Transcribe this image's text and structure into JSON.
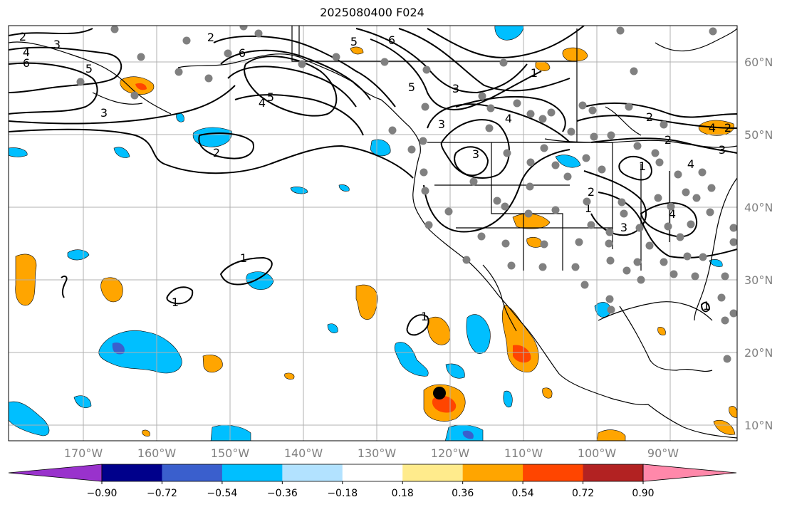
{
  "title": "2025080400 F024",
  "lon_ticks": [
    "170°W",
    "160°W",
    "150°W",
    "140°W",
    "130°W",
    "120°W",
    "110°W",
    "100°W",
    "90°W"
  ],
  "lat_ticks": [
    "60°N",
    "50°N",
    "40°N",
    "30°N",
    "20°N",
    "10°N"
  ],
  "colorbar": {
    "ticks": [
      "−0.90",
      "−0.72",
      "−0.54",
      "−0.36",
      "−0.18",
      "0.18",
      "0.36",
      "0.54",
      "0.72",
      "0.90"
    ],
    "colors": [
      "#9932cc",
      "#00008b",
      "#3a5fcd",
      "#00bfff",
      "#b2e2ff",
      "#ffffff",
      "#ffeb8c",
      "#ffa500",
      "#ff4500",
      "#b22222",
      "#ff88aa"
    ]
  },
  "contour_labels": [
    "2",
    "3",
    "4",
    "6",
    "5",
    "2",
    "6",
    "5",
    "6",
    "4",
    "3",
    "2",
    "5",
    "3",
    "1",
    "5",
    "3",
    "4",
    "3",
    "2",
    "4",
    "2",
    "3",
    "1",
    "2",
    "1",
    "3",
    "4",
    "1",
    "1",
    "1",
    "2",
    "4",
    "1"
  ],
  "colors": {
    "stations": "#808080",
    "grid": "#b0b0b0",
    "marker": "#000000"
  }
}
